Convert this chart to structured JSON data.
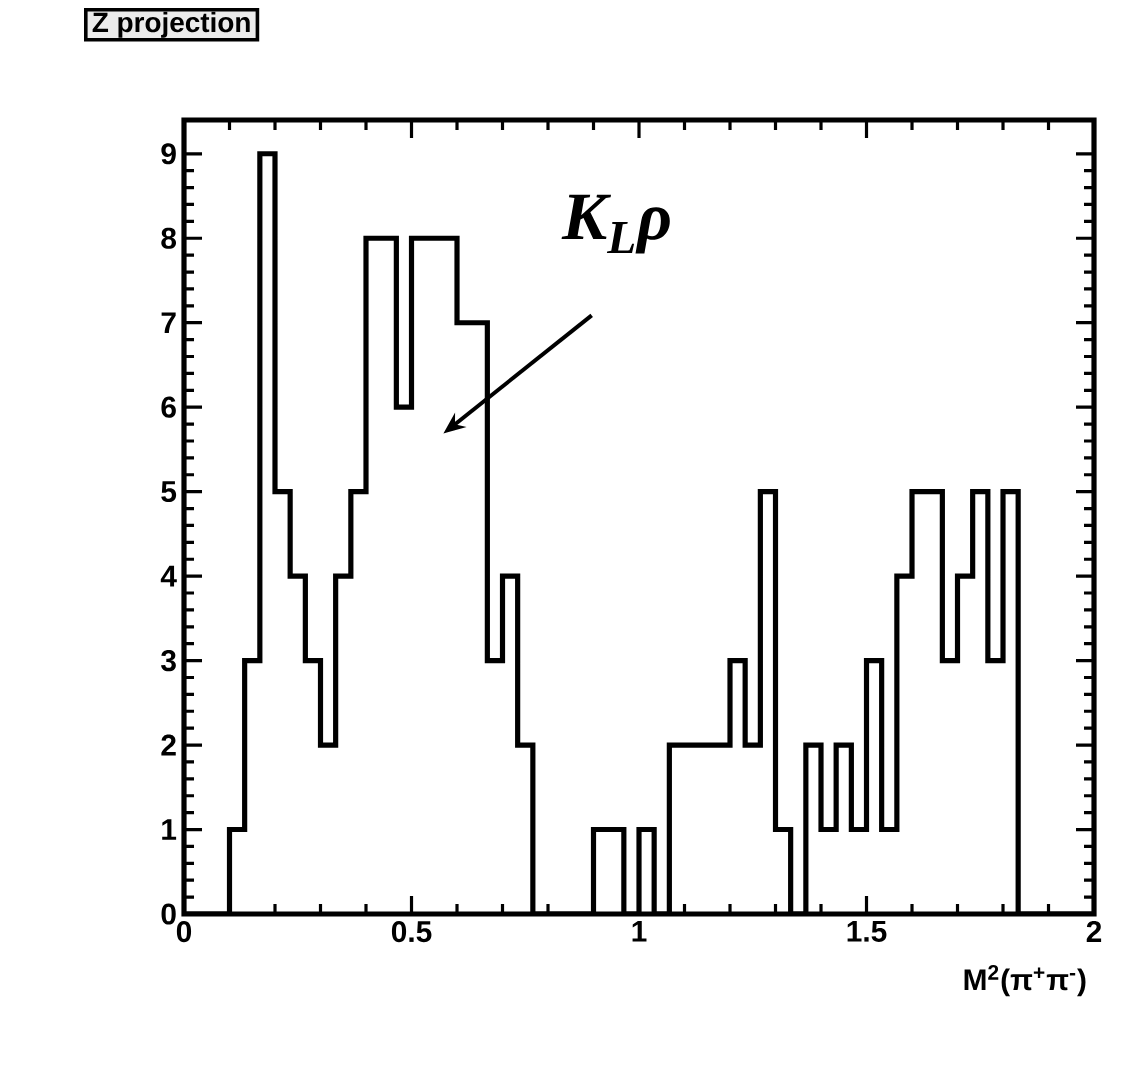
{
  "chart_data": {
    "type": "histogram",
    "title": "Z projection",
    "xlabel": "M$^{2}$(π$^{+}$π$^{-}$)",
    "bins": [
      0,
      0.0333,
      0.0667,
      0.1,
      0.1333,
      0.1667,
      0.2,
      0.2333,
      0.2667,
      0.3,
      0.3333,
      0.3667,
      0.4,
      0.4333,
      0.4667,
      0.5,
      0.5333,
      0.5667,
      0.6,
      0.6333,
      0.6667,
      0.7,
      0.7333,
      0.7667,
      0.8,
      0.8333,
      0.8667,
      0.9,
      0.9333,
      0.9667,
      1,
      1.0333,
      1.0667,
      1.1,
      1.1333,
      1.1667,
      1.2,
      1.2333,
      1.2667,
      1.3,
      1.3333,
      1.3667,
      1.4,
      1.4333,
      1.4667,
      1.5,
      1.5333,
      1.5667,
      1.6,
      1.6333,
      1.6667,
      1.7,
      1.7333,
      1.7667,
      1.8,
      1.8333,
      1.8667,
      1.9,
      1.9333,
      1.9667,
      2
    ],
    "values": [
      0,
      0,
      0,
      1,
      3,
      9,
      5,
      4,
      3,
      2,
      4,
      5,
      8,
      8,
      6,
      8,
      8,
      8,
      7,
      7,
      3,
      4,
      2,
      0,
      0,
      0,
      0,
      1,
      1,
      0,
      1,
      0,
      2,
      2,
      2,
      2,
      3,
      2,
      5,
      1,
      0,
      2,
      1,
      2,
      1,
      3,
      1,
      4,
      5,
      5,
      3,
      4,
      5,
      3,
      5,
      0,
      0,
      0,
      0,
      0
    ],
    "color": "#000000",
    "xlim": [
      0,
      2
    ],
    "ylim": [
      0,
      9.4
    ],
    "xticks": [
      0,
      0.5,
      1,
      1.5,
      2
    ],
    "yticks": [
      0,
      1,
      2,
      3,
      4,
      5,
      6,
      7,
      8,
      9
    ],
    "annotations": [
      "K$_{L}$ρ"
    ],
    "grid": false
  }
}
